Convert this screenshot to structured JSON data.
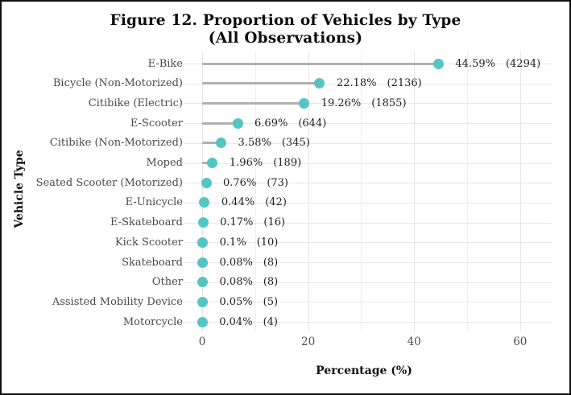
{
  "figure": {
    "title_line1": "Figure 12. Proportion of Vehicles by Type",
    "title_line2": "(All Observations)",
    "xlabel": "Percentage (%)",
    "ylabel": "Vehicle Type"
  },
  "chart_data": {
    "type": "bar",
    "style": "horizontal-lollipop",
    "title": "Figure 12. Proportion of Vehicles by Type (All Observations)",
    "xlabel": "Percentage (%)",
    "ylabel": "Vehicle Type",
    "xlim": [
      0,
      66
    ],
    "x_ticks": [
      0,
      20,
      40,
      60
    ],
    "x_minor_gridlines": [
      10,
      30,
      50
    ],
    "grid": true,
    "legend": "none",
    "categories": [
      "E-Bike",
      "Bicycle (Non-Motorized)",
      "Citibike (Electric)",
      "E-Scooter",
      "Citibike (Non-Motorized)",
      "Moped",
      "Seated Scooter (Motorized)",
      "E-Unicycle",
      "E-Skateboard",
      "Kick Scooter",
      "Skateboard",
      "Other",
      "Assisted Mobility Device",
      "Motorcycle"
    ],
    "values": [
      44.59,
      22.18,
      19.26,
      6.69,
      3.58,
      1.96,
      0.76,
      0.44,
      0.17,
      0.1,
      0.08,
      0.08,
      0.05,
      0.04
    ],
    "counts": [
      4294,
      2136,
      1855,
      644,
      345,
      189,
      73,
      42,
      16,
      10,
      8,
      8,
      5,
      4
    ],
    "pct_labels": [
      "44.59%",
      "22.18%",
      "19.26%",
      "6.69%",
      "3.58%",
      "1.96%",
      "0.76%",
      "0.44%",
      "0.17%",
      "0.1%",
      "0.08%",
      "0.08%",
      "0.05%",
      "0.04%"
    ],
    "count_labels": [
      "(4294)",
      "(2136)",
      "(1855)",
      "(644)",
      "(345)",
      "(189)",
      "(73)",
      "(42)",
      "(16)",
      "(10)",
      "(8)",
      "(8)",
      "(5)",
      "(4)"
    ],
    "colors": {
      "dot": "#55c5c3",
      "stem": "#b1b1b1",
      "gridline_major": "#e7e7e7",
      "gridline_minor": "#efefef",
      "category_label": "#4a4a4a",
      "value_text": "#1f1f1f",
      "tick_label": "#4d4d4d",
      "title": "#0d0d0d"
    }
  }
}
